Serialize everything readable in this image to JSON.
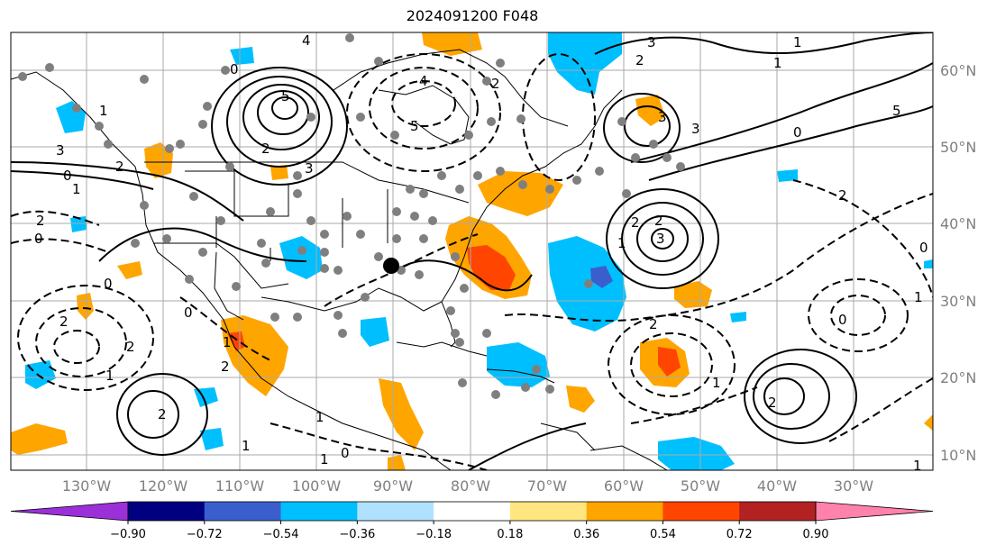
{
  "title": "2024091200 F048",
  "map": {
    "lon_ticks": [
      "130°W",
      "120°W",
      "110°W",
      "100°W",
      "90°W",
      "80°W",
      "70°W",
      "60°W",
      "50°W",
      "40°W",
      "30°W"
    ],
    "lat_ticks": [
      "60°N",
      "50°N",
      "40°N",
      "30°N",
      "20°N",
      "10°N"
    ],
    "storm_marker": "black-dot"
  },
  "colorbar": {
    "colors": [
      "#9b30d9",
      "#000080",
      "#3a5fcd",
      "#00bfff",
      "#b0e2ff",
      "#ffffff",
      "#ffe680",
      "#ffa500",
      "#ff4500",
      "#b22222",
      "#ff82ab"
    ],
    "labels": [
      "−0.90",
      "−0.72",
      "−0.54",
      "−0.36",
      "−0.18",
      "0.18",
      "0.36",
      "0.54",
      "0.72",
      "0.90"
    ]
  },
  "contour_labels": [
    "4",
    "1",
    "2",
    "3",
    "0",
    "2",
    "5",
    "0",
    "4",
    "3",
    "5",
    "1",
    "1",
    "2",
    "3",
    "3",
    "3",
    "5",
    "2",
    "0",
    "1",
    "0",
    "2",
    "2",
    "0",
    "1",
    "2",
    "2",
    "2",
    "0",
    "1",
    "3",
    "0",
    "1",
    "2",
    "0",
    "2",
    "1",
    "2",
    "2",
    "1",
    "0",
    "1",
    "2",
    "1",
    "1",
    "1"
  ]
}
